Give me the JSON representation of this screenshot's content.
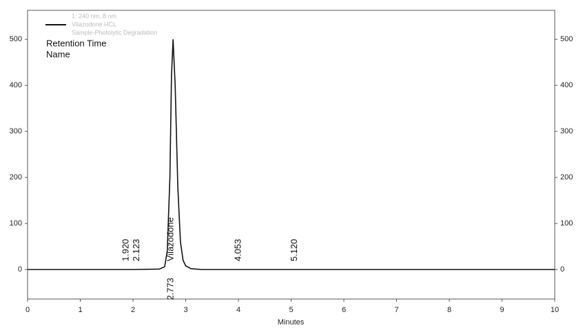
{
  "chart_data": {
    "type": "line",
    "legend_lines": [
      "1: 240 nm, 8 nm",
      "Vilazodone HCL",
      "Sample-Photolytic Degradation"
    ],
    "header_labels": [
      "Retention Time",
      "Name"
    ],
    "x_label": "Minutes",
    "x": [
      0,
      1,
      2,
      2.5,
      2.6,
      2.65,
      2.7,
      2.73,
      2.76,
      2.8,
      2.85,
      2.9,
      2.95,
      3.0,
      3.1,
      3.3,
      4,
      6,
      8,
      10
    ],
    "series": [
      {
        "name": "Vilazodone HCL",
        "color": "#111111",
        "values": [
          0,
          0,
          0,
          1,
          6,
          40,
          200,
          420,
          500,
          400,
          180,
          60,
          20,
          8,
          2,
          0,
          0,
          0,
          0,
          0
        ]
      }
    ],
    "annotations": [
      {
        "text": "1.920",
        "x": 1.92,
        "side": "above"
      },
      {
        "text": "2.123",
        "x": 2.123,
        "side": "above"
      },
      {
        "text": "Vilazodone",
        "x": 2.773,
        "side": "above"
      },
      {
        "text": "2.773",
        "x": 2.773,
        "side": "below"
      },
      {
        "text": "4.053",
        "x": 4.053,
        "side": "above"
      },
      {
        "text": "5.120",
        "x": 5.12,
        "side": "above"
      }
    ],
    "xlim": [
      0,
      10
    ],
    "xticks": [
      0,
      1,
      2,
      3,
      4,
      5,
      6,
      7,
      8,
      9,
      10
    ],
    "ylim": [
      -64,
      563
    ],
    "yticks": [
      0,
      100,
      200,
      300,
      400,
      500
    ],
    "y2lim": [
      -64,
      563
    ],
    "y2ticks": [
      0,
      100,
      200,
      300,
      400,
      500
    ]
  }
}
